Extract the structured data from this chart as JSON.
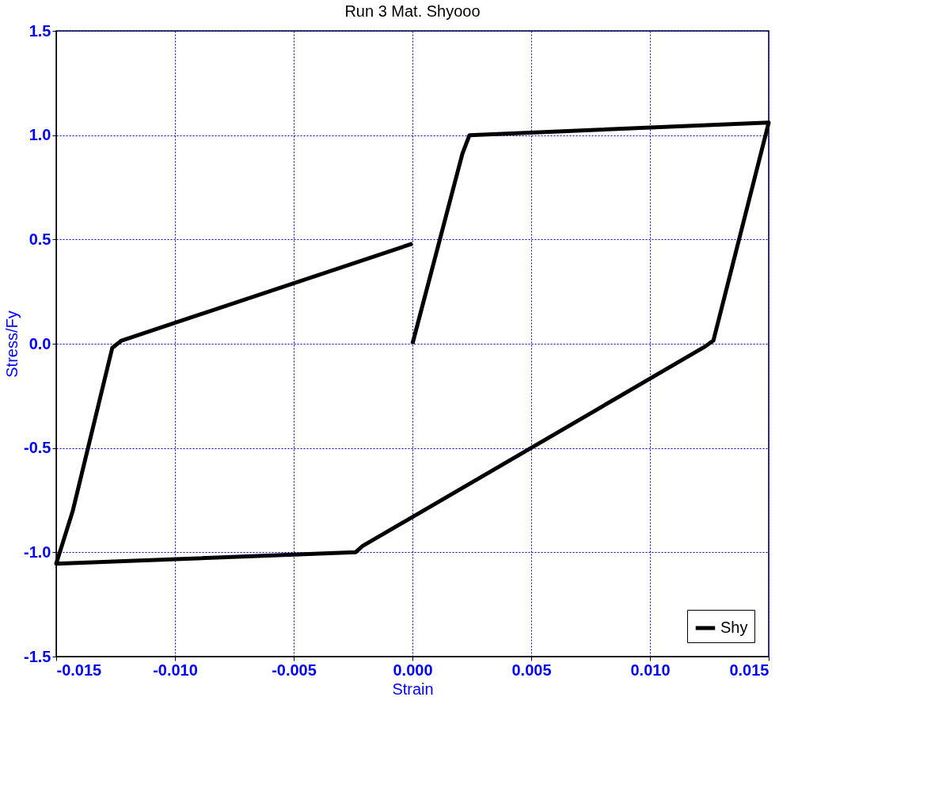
{
  "chart_data": {
    "type": "line",
    "title": "Run 3   Mat. Shyooo",
    "xlabel": "Strain",
    "ylabel": "Stress/Fy",
    "x": [
      0.0,
      0.0021,
      0.0024,
      0.015,
      0.01267,
      0.0123,
      -0.0021,
      -0.0024,
      -0.015,
      -0.0143,
      -0.01264,
      -0.01225,
      0.0
    ],
    "series": [
      {
        "name": "Shy",
        "color": "#000000",
        "values": [
          0.0,
          0.91,
          1.0,
          1.06,
          0.015,
          -0.015,
          -0.97,
          -1.0,
          -1.055,
          -0.8,
          -0.02,
          0.015,
          0.48
        ]
      }
    ],
    "xlim": [
      -0.015,
      0.015
    ],
    "xticks": [
      {
        "value": -0.015,
        "label": "-0.015"
      },
      {
        "value": -0.01,
        "label": "-0.010"
      },
      {
        "value": -0.005,
        "label": "-0.005"
      },
      {
        "value": 0,
        "label": "0.000"
      },
      {
        "value": 0.005,
        "label": "0.005"
      },
      {
        "value": 0.01,
        "label": "0.010"
      },
      {
        "value": 0.015,
        "label": "0.015"
      }
    ],
    "ylim": [
      -1.5,
      1.5
    ],
    "yticks": [
      {
        "value": -1.5,
        "label": "-1.5"
      },
      {
        "value": -1,
        "label": "-1.0"
      },
      {
        "value": -0.5,
        "label": "-0.5"
      },
      {
        "value": 0,
        "label": "0.0"
      },
      {
        "value": 0.5,
        "label": "0.5"
      },
      {
        "value": 1,
        "label": "1.0"
      },
      {
        "value": 1.5,
        "label": "1.5"
      }
    ],
    "grid": true,
    "legend": "bottom right",
    "line_style": "solid",
    "marker": "none"
  }
}
